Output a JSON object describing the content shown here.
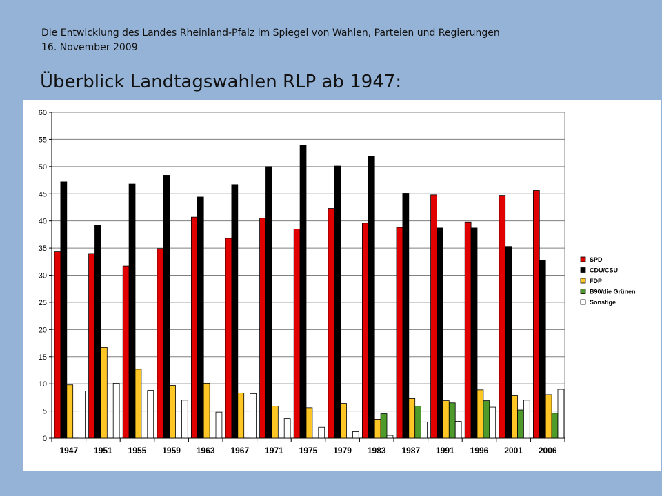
{
  "header": {
    "line1": "Die Entwicklung des Landes Rheinland-Pfalz im Spiegel von Wahlen, Parteien und Regierungen",
    "line2": "16. November 2009",
    "title": "Überblick Landtagswahlen RLP ab 1947:"
  },
  "chart_data": {
    "type": "bar",
    "title": "",
    "xlabel": "",
    "ylabel": "",
    "ylim": [
      0,
      60
    ],
    "yticks": [
      "0",
      "5",
      "10",
      "15",
      "20",
      "25",
      "30",
      "35",
      "40",
      "45",
      "50",
      "55",
      "60"
    ],
    "grid": true,
    "legend_position": "right",
    "categories": [
      "1947",
      "1951",
      "1955",
      "1959",
      "1963",
      "1967",
      "1971",
      "1975",
      "1979",
      "1983",
      "1987",
      "1991",
      "1996",
      "2001",
      "2006"
    ],
    "series": [
      {
        "name": "SPD",
        "color": "#E00000",
        "values": [
          34.3,
          34.0,
          31.7,
          34.9,
          40.7,
          36.8,
          40.5,
          38.5,
          42.3,
          39.6,
          38.8,
          44.8,
          39.8,
          44.7,
          45.6
        ]
      },
      {
        "name": "CDU/CSU",
        "color": "#000000",
        "values": [
          47.2,
          39.2,
          46.8,
          48.4,
          44.4,
          46.7,
          50.0,
          53.9,
          50.1,
          51.9,
          45.1,
          38.7,
          38.7,
          35.3,
          32.8
        ]
      },
      {
        "name": "FDP",
        "color": "#FFC726",
        "values": [
          9.8,
          16.7,
          12.7,
          9.7,
          10.1,
          8.3,
          5.9,
          5.6,
          6.4,
          3.5,
          7.3,
          6.9,
          8.9,
          7.8,
          8.0
        ]
      },
      {
        "name": "B90/die Grünen",
        "color": "#4E9A2A",
        "values": [
          null,
          null,
          null,
          null,
          null,
          null,
          null,
          null,
          null,
          4.5,
          5.9,
          6.5,
          6.9,
          5.2,
          4.6
        ]
      },
      {
        "name": "Sonstige",
        "color": "#FFFFFF",
        "values": [
          8.7,
          10.1,
          8.8,
          7.0,
          4.8,
          8.2,
          3.6,
          2.0,
          1.2,
          0.5,
          3.0,
          3.1,
          5.7,
          7.0,
          9.0
        ]
      }
    ]
  }
}
